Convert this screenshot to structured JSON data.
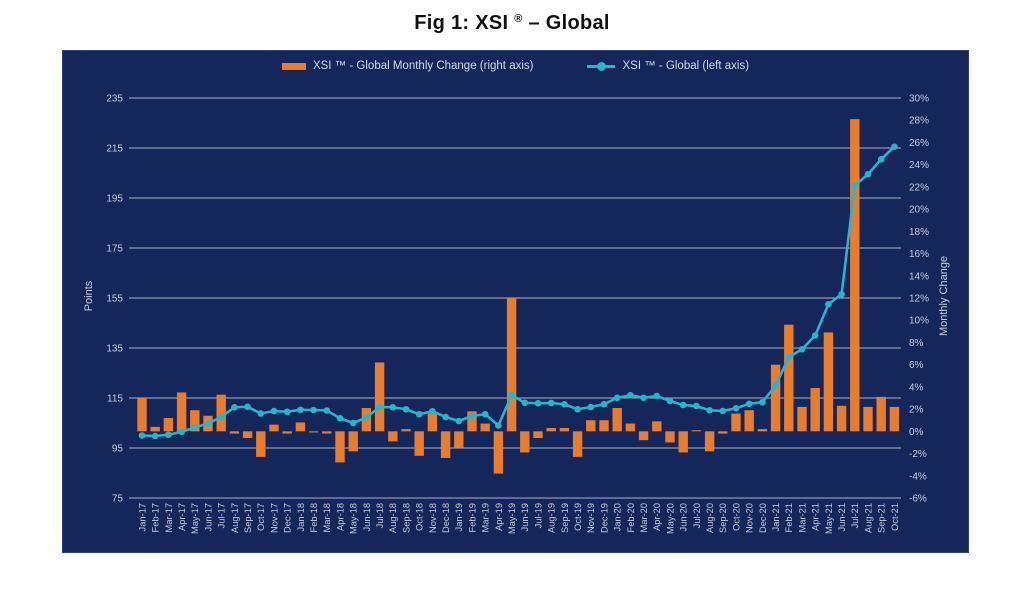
{
  "title": {
    "prefix": "Fig 1: XSI ",
    "registered": "®",
    "suffix": " – Global"
  },
  "legend": {
    "bar_label": "XSI ™ - Global Monthly Change (right axis)",
    "line_label": "XSI ™ - Global (left axis)"
  },
  "colors": {
    "panel_bg": "#15265B",
    "bar": "#E87D2E",
    "line": "#29B4CD",
    "grid": "#c4cbd9",
    "axis_text": "#c6cdde",
    "title_text": "#111111"
  },
  "chart_data": {
    "type": "bar+line combo",
    "title": "Fig 1: XSI ® – Global",
    "grid": true,
    "legend_position": "top-center",
    "categories": [
      "Jan-17",
      "Feb-17",
      "Mar-17",
      "Apr-17",
      "May-17",
      "Jun-17",
      "Jul-17",
      "Aug-17",
      "Sep-17",
      "Oct-17",
      "Nov-17",
      "Dec-17",
      "Jan-18",
      "Feb-18",
      "Mar-18",
      "Apr-18",
      "May-18",
      "Jun-18",
      "Jul-18",
      "Aug-18",
      "Sep-18",
      "Oct-18",
      "Nov-18",
      "Dec-18",
      "Jan-19",
      "Feb-19",
      "Mar-19",
      "Apr-19",
      "May-19",
      "Jun-19",
      "Jul-19",
      "Aug-19",
      "Sep-19",
      "Oct-19",
      "Nov-19",
      "Dec-19",
      "Jan-20",
      "Feb-20",
      "Mar-20",
      "Apr-20",
      "May-20",
      "Jun-20",
      "Jul-20",
      "Aug-20",
      "Sep-20",
      "Oct-20",
      "Nov-20",
      "Dec-20",
      "Jan-21",
      "Feb-21",
      "Mar-21",
      "Apr-21",
      "May-21",
      "Jun-21",
      "Jul-21",
      "Aug-21",
      "Sep-21",
      "Oct-21"
    ],
    "series": [
      {
        "name": "XSI ™ - Global Monthly Change (right axis)",
        "type": "bar",
        "axis": "right",
        "unit": "%",
        "values": [
          3.0,
          0.4,
          1.2,
          3.5,
          1.9,
          1.4,
          3.3,
          -0.2,
          -0.6,
          -2.3,
          0.6,
          -0.2,
          0.8,
          -0.1,
          -0.2,
          -2.8,
          -1.8,
          2.1,
          6.2,
          -0.9,
          0.2,
          -2.2,
          1.6,
          -2.4,
          -1.5,
          1.8,
          0.7,
          -3.8,
          12.0,
          -1.9,
          -0.6,
          0.3,
          0.3,
          -2.3,
          1.0,
          1.0,
          2.1,
          0.7,
          -0.8,
          0.9,
          -1.0,
          -1.9,
          0.1,
          -1.8,
          -0.2,
          1.6,
          1.9,
          0.2,
          6.0,
          9.6,
          2.2,
          3.9,
          8.9,
          2.3,
          28.1,
          2.2,
          3.1,
          2.2
        ]
      },
      {
        "name": "XSI ™ - Global (left axis)",
        "type": "line",
        "axis": "left",
        "unit": "points",
        "values": [
          100,
          99.8,
          100.3,
          101.5,
          103.2,
          104.8,
          107.4,
          111.3,
          111.5,
          108.8,
          109.8,
          109.5,
          110.3,
          110.2,
          110.0,
          106.9,
          105.0,
          107.2,
          111.4,
          111.3,
          110.5,
          108.5,
          109.7,
          107.4,
          105.8,
          107.8,
          108.5,
          104.0,
          116.1,
          113.1,
          112.9,
          113.0,
          112.5,
          110.5,
          111.4,
          112.5,
          115.1,
          116.1,
          115.1,
          115.8,
          113.8,
          112.2,
          111.8,
          110.1,
          109.8,
          110.9,
          112.7,
          113.3,
          120.0,
          131.3,
          134.5,
          140.0,
          152.5,
          156.5,
          200.0,
          204.5,
          210.5,
          215.5
        ]
      }
    ],
    "left_axis": {
      "label": "Points",
      "range": [
        75,
        235
      ],
      "ticks": [
        235,
        215,
        195,
        175,
        155,
        135,
        115,
        95,
        75
      ]
    },
    "right_axis": {
      "label": "Monthly Change",
      "range": [
        -6,
        30
      ],
      "ticks": [
        "30%",
        "28%",
        "26%",
        "24%",
        "22%",
        "20%",
        "18%",
        "16%",
        "14%",
        "12%",
        "10%",
        "8%",
        "6%",
        "4%",
        "2%",
        "0%",
        "-2%",
        "-4%",
        "-6%"
      ]
    }
  }
}
